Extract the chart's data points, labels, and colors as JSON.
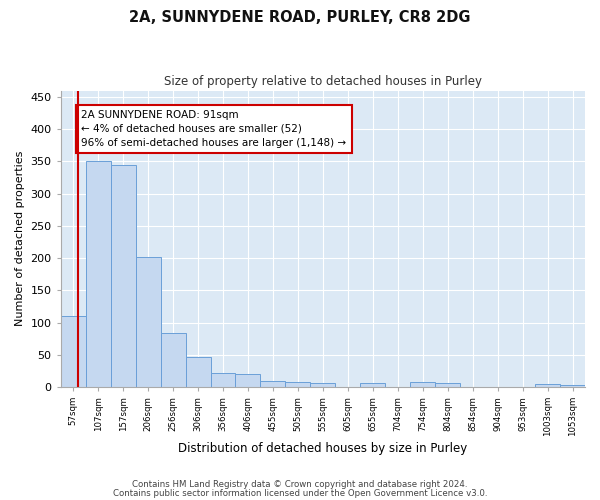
{
  "title1": "2A, SUNNYDENE ROAD, PURLEY, CR8 2DG",
  "title2": "Size of property relative to detached houses in Purley",
  "xlabel": "Distribution of detached houses by size in Purley",
  "ylabel": "Number of detached properties",
  "bin_labels": [
    "57sqm",
    "107sqm",
    "157sqm",
    "206sqm",
    "256sqm",
    "306sqm",
    "356sqm",
    "406sqm",
    "455sqm",
    "505sqm",
    "555sqm",
    "605sqm",
    "655sqm",
    "704sqm",
    "754sqm",
    "804sqm",
    "854sqm",
    "904sqm",
    "953sqm",
    "1003sqm",
    "1053sqm"
  ],
  "bar_values": [
    110,
    350,
    345,
    202,
    84,
    46,
    22,
    20,
    10,
    8,
    6,
    0,
    6,
    0,
    8,
    6,
    0,
    0,
    0,
    4,
    3
  ],
  "bar_color": "#c5d8f0",
  "bar_edge_color": "#6a9fd8",
  "annotation_title": "2A SUNNYDENE ROAD: 91sqm",
  "annotation_line2": "← 4% of detached houses are smaller (52)",
  "annotation_line3": "96% of semi-detached houses are larger (1,148) →",
  "annotation_box_color": "#ffffff",
  "annotation_border_color": "#cc0000",
  "vline_color": "#cc0000",
  "yticks": [
    0,
    50,
    100,
    150,
    200,
    250,
    300,
    350,
    400,
    450
  ],
  "ylim": [
    0,
    460
  ],
  "footer1": "Contains HM Land Registry data © Crown copyright and database right 2024.",
  "footer2": "Contains public sector information licensed under the Open Government Licence v3.0.",
  "bg_color": "#ffffff",
  "plot_bg_color": "#dce9f5"
}
